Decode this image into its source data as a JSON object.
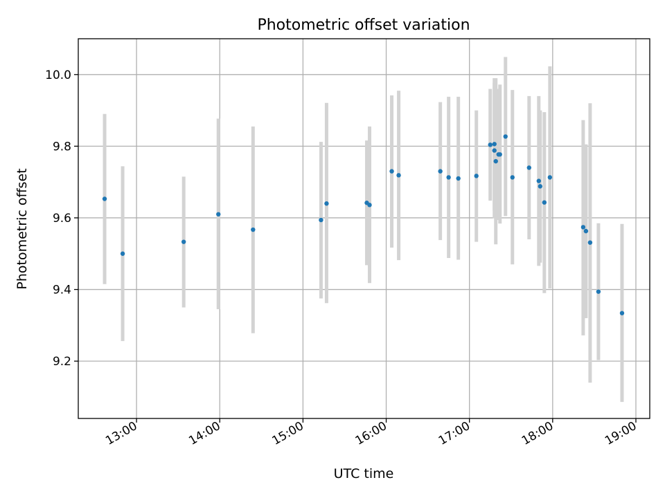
{
  "chart_data": {
    "type": "scatter",
    "title": "Photometric offset variation",
    "xlabel": "UTC time",
    "ylabel": "Photometric offset",
    "x_ticks": [
      "13:00",
      "14:00",
      "15:00",
      "16:00",
      "17:00",
      "18:00",
      "19:00"
    ],
    "y_ticks": [
      "9.2",
      "9.4",
      "9.6",
      "9.8",
      "10.0"
    ],
    "xlim": [
      "12:18",
      "19:10"
    ],
    "ylim": [
      9.04,
      10.1
    ],
    "grid": true,
    "colors": {
      "point": "#1f77b4",
      "error_bar": "#d3d3d3",
      "grid": "#b0b0b0"
    },
    "points": [
      {
        "x": "12:37",
        "y": 9.653,
        "ylo": 9.415,
        "yhi": 9.89
      },
      {
        "x": "12:50",
        "y": 9.5,
        "ylo": 9.256,
        "yhi": 9.744
      },
      {
        "x": "13:34",
        "y": 9.533,
        "ylo": 9.35,
        "yhi": 9.715
      },
      {
        "x": "13:59",
        "y": 9.61,
        "ylo": 9.345,
        "yhi": 9.877
      },
      {
        "x": "14:24",
        "y": 9.567,
        "ylo": 9.278,
        "yhi": 9.855
      },
      {
        "x": "15:13",
        "y": 9.594,
        "ylo": 9.375,
        "yhi": 9.812
      },
      {
        "x": "15:17",
        "y": 9.64,
        "ylo": 9.362,
        "yhi": 9.921
      },
      {
        "x": "15:46",
        "y": 9.642,
        "ylo": 9.468,
        "yhi": 9.816
      },
      {
        "x": "15:48",
        "y": 9.636,
        "ylo": 9.418,
        "yhi": 9.855
      },
      {
        "x": "16:04",
        "y": 9.73,
        "ylo": 9.517,
        "yhi": 9.942
      },
      {
        "x": "16:09",
        "y": 9.719,
        "ylo": 9.482,
        "yhi": 9.955
      },
      {
        "x": "16:39",
        "y": 9.73,
        "ylo": 9.538,
        "yhi": 9.923
      },
      {
        "x": "16:45",
        "y": 9.713,
        "ylo": 9.488,
        "yhi": 9.938
      },
      {
        "x": "16:52",
        "y": 9.71,
        "ylo": 9.483,
        "yhi": 9.938
      },
      {
        "x": "17:05",
        "y": 9.717,
        "ylo": 9.533,
        "yhi": 9.9
      },
      {
        "x": "17:15",
        "y": 9.804,
        "ylo": 9.648,
        "yhi": 9.96
      },
      {
        "x": "17:18",
        "y": 9.806,
        "ylo": 9.62,
        "yhi": 9.99
      },
      {
        "x": "17:18",
        "y": 9.788,
        "ylo": 9.599,
        "yhi": 9.977
      },
      {
        "x": "17:19",
        "y": 9.758,
        "ylo": 9.526,
        "yhi": 9.99
      },
      {
        "x": "17:21",
        "y": 9.777,
        "ylo": 9.594,
        "yhi": 9.96
      },
      {
        "x": "17:22",
        "y": 9.777,
        "ylo": 9.584,
        "yhi": 9.972
      },
      {
        "x": "17:26",
        "y": 9.827,
        "ylo": 9.605,
        "yhi": 10.049
      },
      {
        "x": "17:31",
        "y": 9.713,
        "ylo": 9.47,
        "yhi": 9.957
      },
      {
        "x": "17:43",
        "y": 9.74,
        "ylo": 9.54,
        "yhi": 9.94
      },
      {
        "x": "17:50",
        "y": 9.703,
        "ylo": 9.466,
        "yhi": 9.94
      },
      {
        "x": "17:51",
        "y": 9.688,
        "ylo": 9.475,
        "yhi": 9.9
      },
      {
        "x": "17:54",
        "y": 9.643,
        "ylo": 9.39,
        "yhi": 9.895
      },
      {
        "x": "17:58",
        "y": 9.713,
        "ylo": 9.403,
        "yhi": 10.023
      },
      {
        "x": "18:22",
        "y": 9.574,
        "ylo": 9.272,
        "yhi": 9.873
      },
      {
        "x": "18:24",
        "y": 9.563,
        "ylo": 9.32,
        "yhi": 9.805
      },
      {
        "x": "18:27",
        "y": 9.531,
        "ylo": 9.14,
        "yhi": 9.92
      },
      {
        "x": "18:33",
        "y": 9.394,
        "ylo": 9.203,
        "yhi": 9.585
      },
      {
        "x": "18:50",
        "y": 9.334,
        "ylo": 9.086,
        "yhi": 9.583
      }
    ]
  }
}
